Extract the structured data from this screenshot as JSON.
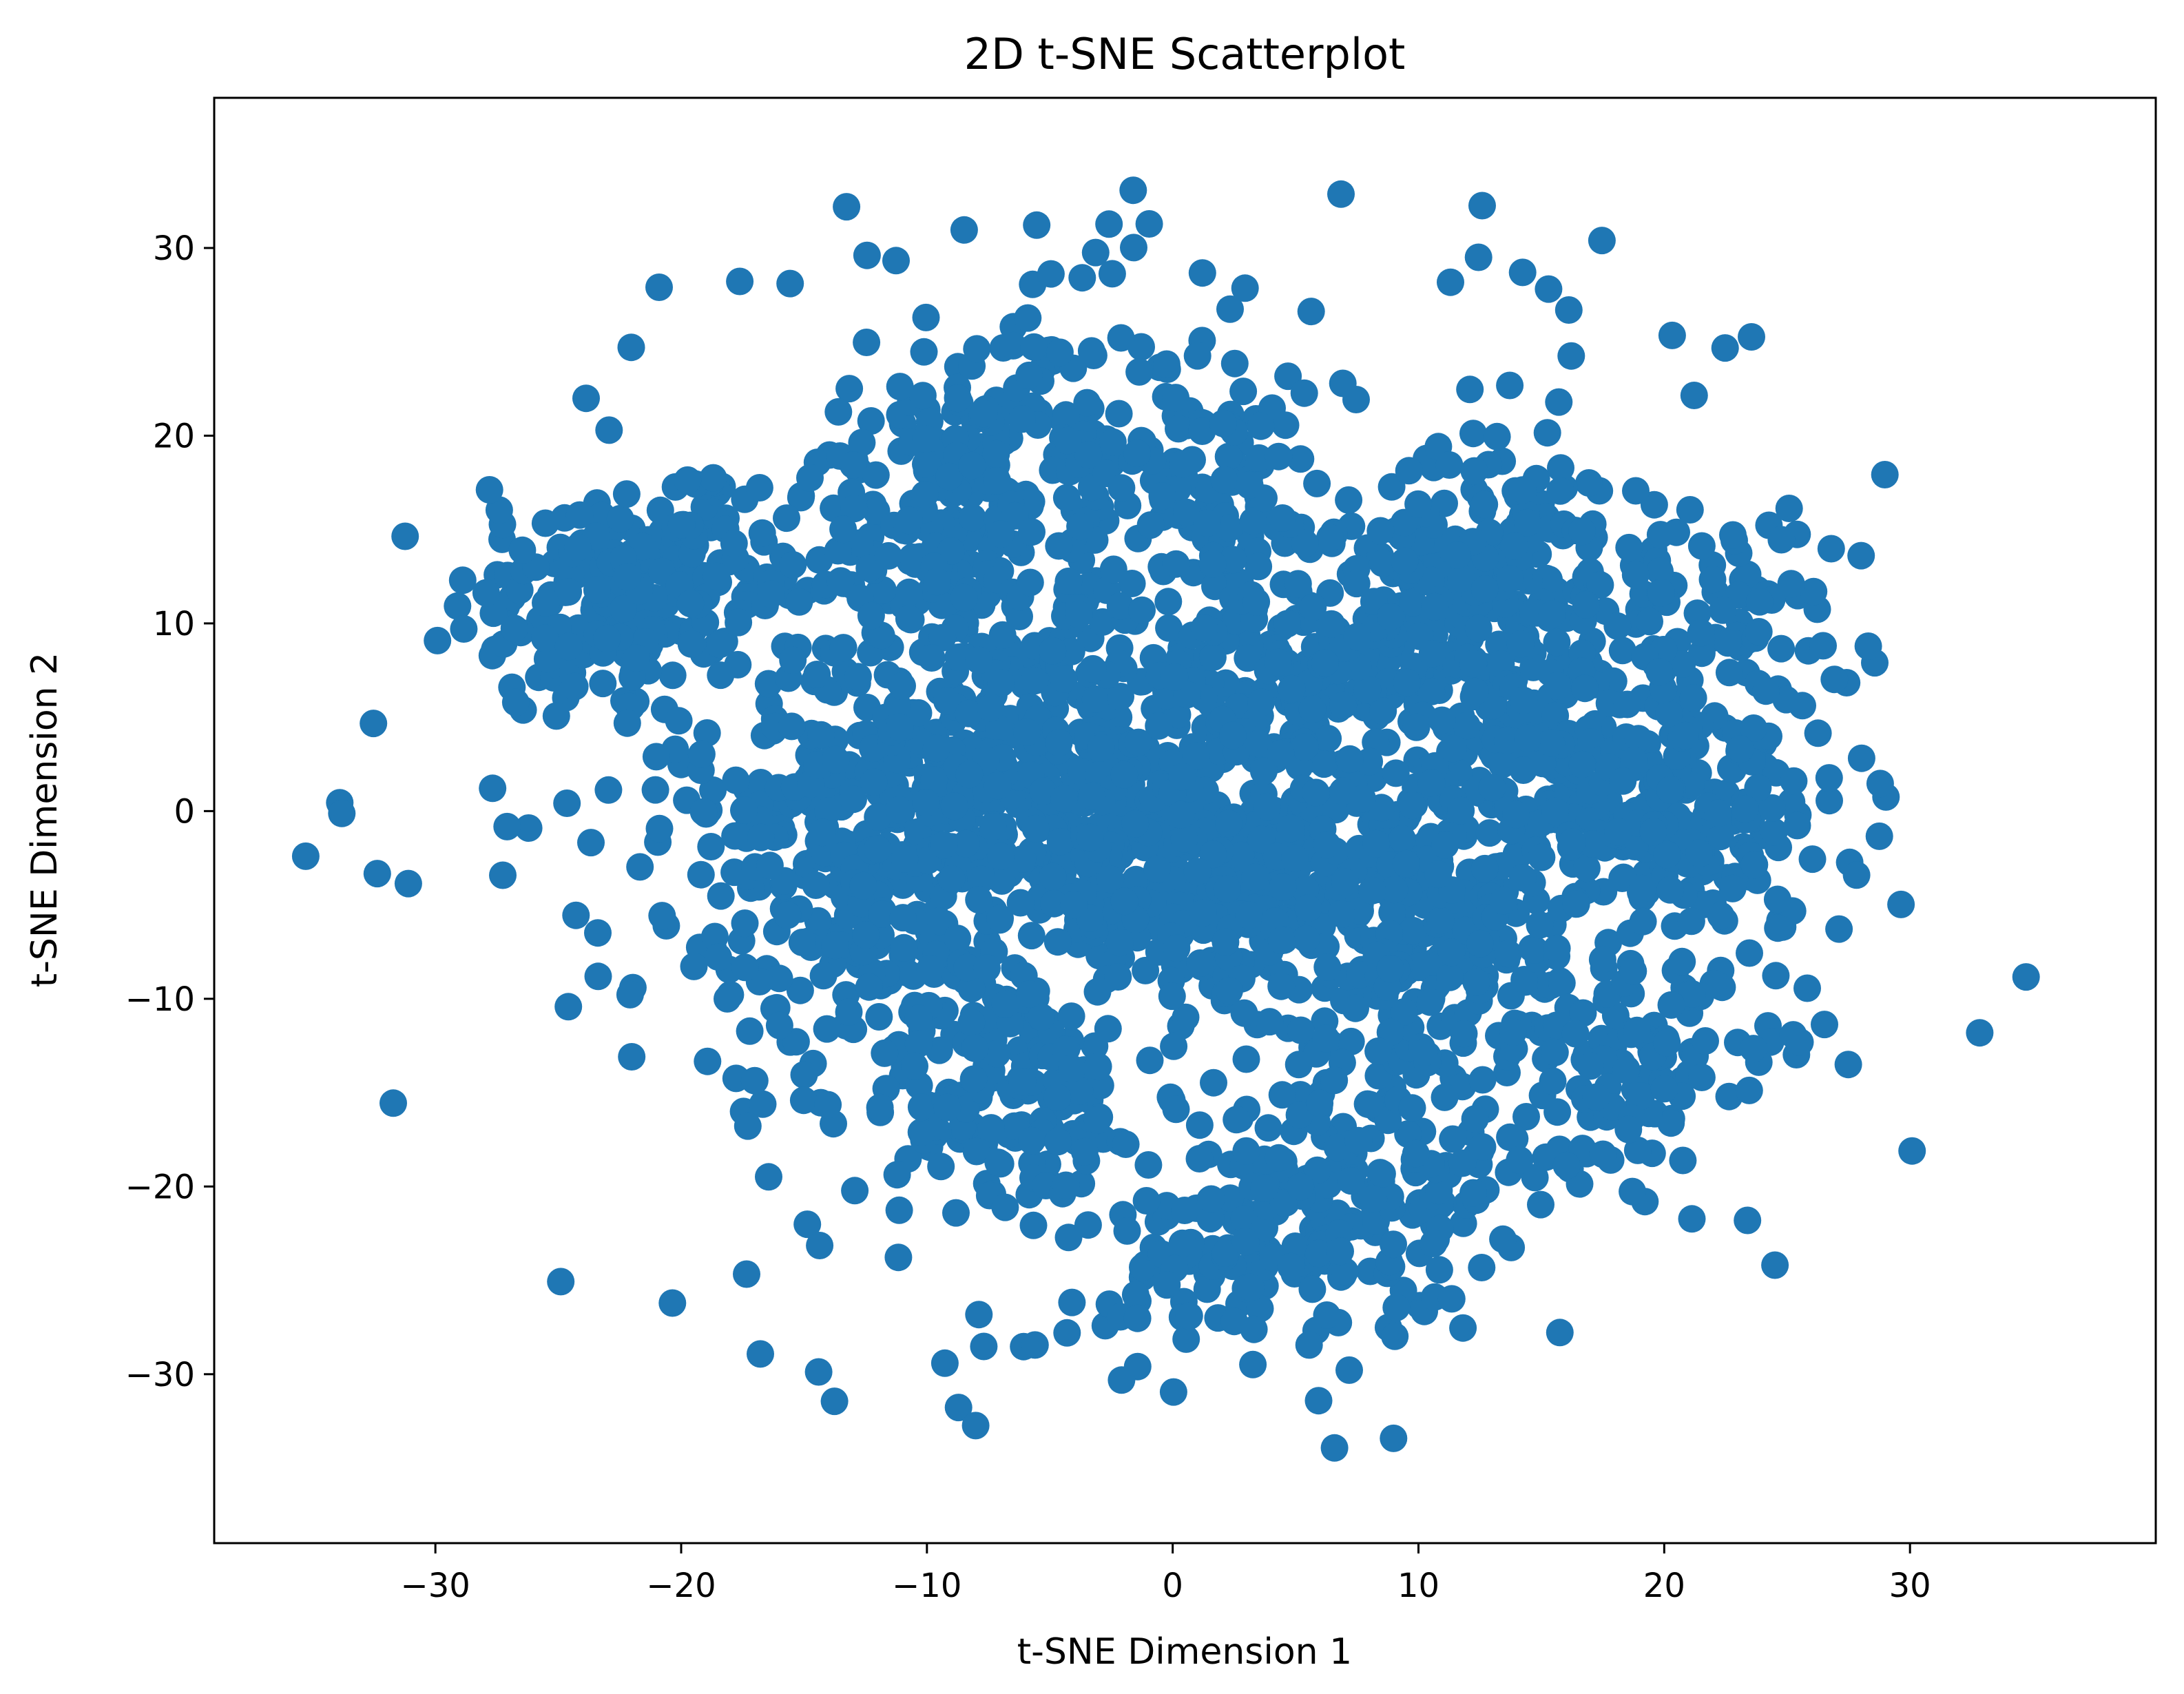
{
  "chart_data": {
    "type": "scatter",
    "title": "2D t-SNE Scatterplot",
    "xlabel": "t-SNE Dimension 1",
    "ylabel": "t-SNE Dimension 2",
    "xlim": [
      -39,
      40
    ],
    "ylim": [
      -39,
      38
    ],
    "xticks": [
      -30,
      -20,
      -10,
      0,
      10,
      20,
      30
    ],
    "yticks": [
      -30,
      -20,
      -10,
      0,
      10,
      20,
      30
    ],
    "grid": false,
    "legend": "none",
    "marker_color": "#1f77b4",
    "clusters": [
      {
        "center": [
          -23,
          11
        ],
        "spread": [
          3.2,
          3.2
        ],
        "count": 130
      },
      {
        "center": [
          -20,
          13
        ],
        "spread": [
          3.0,
          3.0
        ],
        "count": 90
      },
      {
        "center": [
          -14,
          1
        ],
        "spread": [
          2.8,
          3.2
        ],
        "count": 110
      },
      {
        "center": [
          -12,
          -6
        ],
        "spread": [
          3.2,
          3.2
        ],
        "count": 120
      },
      {
        "center": [
          -9,
          14
        ],
        "spread": [
          3.0,
          2.8
        ],
        "count": 120
      },
      {
        "center": [
          -7,
          21
        ],
        "spread": [
          2.6,
          2.4
        ],
        "count": 80
      },
      {
        "center": [
          -7,
          3
        ],
        "spread": [
          3.6,
          3.6
        ],
        "count": 170
      },
      {
        "center": [
          -3,
          -2
        ],
        "spread": [
          3.6,
          3.6
        ],
        "count": 170
      },
      {
        "center": [
          -7,
          -15
        ],
        "spread": [
          3.0,
          3.0
        ],
        "count": 120
      },
      {
        "center": [
          1,
          18
        ],
        "spread": [
          2.6,
          2.6
        ],
        "count": 90
      },
      {
        "center": [
          3,
          6
        ],
        "spread": [
          3.2,
          3.2
        ],
        "count": 120
      },
      {
        "center": [
          2,
          -3
        ],
        "spread": [
          3.4,
          3.4
        ],
        "count": 150
      },
      {
        "center": [
          4,
          -23
        ],
        "spread": [
          3.4,
          3.0
        ],
        "count": 140
      },
      {
        "center": [
          9,
          -19
        ],
        "spread": [
          2.8,
          2.8
        ],
        "count": 90
      },
      {
        "center": [
          10,
          9
        ],
        "spread": [
          3.6,
          3.4
        ],
        "count": 170
      },
      {
        "center": [
          7,
          -3
        ],
        "spread": [
          3.0,
          3.2
        ],
        "count": 120
      },
      {
        "center": [
          11,
          -8
        ],
        "spread": [
          3.4,
          3.2
        ],
        "count": 140
      },
      {
        "center": [
          14,
          14
        ],
        "spread": [
          2.8,
          2.8
        ],
        "count": 90
      },
      {
        "center": [
          15,
          2
        ],
        "spread": [
          3.0,
          3.0
        ],
        "count": 100
      },
      {
        "center": [
          21,
          -1
        ],
        "spread": [
          3.4,
          3.0
        ],
        "count": 140
      },
      {
        "center": [
          19,
          -14
        ],
        "spread": [
          2.8,
          2.8
        ],
        "count": 90
      },
      {
        "center": [
          22,
          10
        ],
        "spread": [
          3.0,
          3.0
        ],
        "count": 80
      },
      {
        "center": [
          0,
          0
        ],
        "spread": [
          15.5,
          15.5
        ],
        "count": 650
      }
    ]
  }
}
